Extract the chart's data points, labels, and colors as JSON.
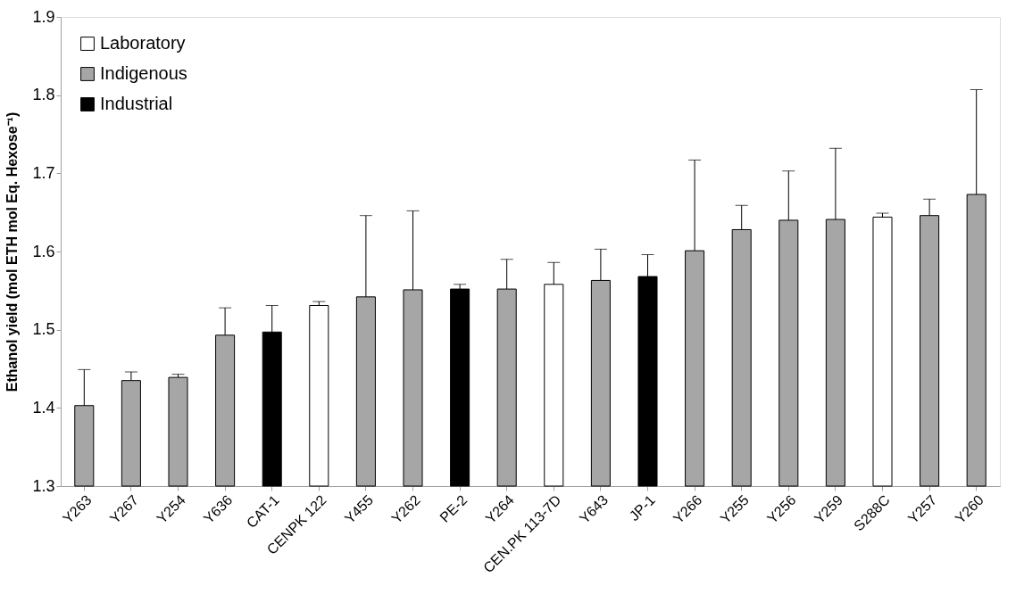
{
  "chart_data": {
    "type": "bar",
    "ylabel": "Ethanol yield (mol ETH mol Eq. Hexose⁻¹)",
    "categories": [
      "Y263",
      "Y267",
      "Y254",
      "Y636",
      "CAT-1",
      "CENPK 122",
      "Y455",
      "Y262",
      "PE-2",
      "Y264",
      "CEN.PK 113-7D",
      "Y643",
      "JP-1",
      "Y266",
      "Y255",
      "Y256",
      "Y259",
      "S288C",
      "Y257",
      "Y260"
    ],
    "stacked": true,
    "series": [
      {
        "name": "Laboratory",
        "color": "#ffffff",
        "values": [
          null,
          null,
          null,
          null,
          null,
          1.531,
          null,
          null,
          null,
          null,
          1.558,
          null,
          null,
          null,
          null,
          null,
          null,
          1.644,
          null,
          null
        ],
        "errors": [
          null,
          null,
          null,
          null,
          null,
          [
            1.531,
            1.536
          ],
          null,
          null,
          null,
          null,
          [
            1.558,
            1.586
          ],
          null,
          null,
          null,
          null,
          null,
          null,
          [
            1.644,
            1.649
          ],
          null,
          null
        ]
      },
      {
        "name": "Indigenous",
        "color": "#a6a6a6",
        "values": [
          1.403,
          1.435,
          1.439,
          1.493,
          null,
          null,
          1.542,
          1.551,
          null,
          1.552,
          null,
          1.563,
          null,
          1.601,
          1.628,
          1.64,
          1.641,
          null,
          1.646,
          1.673
        ],
        "errors": [
          [
            1.403,
            1.449
          ],
          [
            1.435,
            1.446
          ],
          [
            1.439,
            1.443
          ],
          [
            1.493,
            1.528
          ],
          null,
          null,
          [
            1.542,
            1.646
          ],
          [
            1.551,
            1.652
          ],
          null,
          [
            1.552,
            1.59
          ],
          null,
          [
            1.563,
            1.603
          ],
          null,
          [
            1.601,
            1.717
          ],
          [
            1.628,
            1.659
          ],
          [
            1.64,
            1.703
          ],
          [
            1.641,
            1.732
          ],
          null,
          [
            1.646,
            1.667
          ],
          [
            1.673,
            1.807
          ]
        ]
      },
      {
        "name": "Industrial",
        "color": "#000000",
        "values": [
          null,
          null,
          null,
          null,
          1.497,
          null,
          null,
          null,
          1.552,
          null,
          null,
          null,
          1.568,
          null,
          null,
          null,
          null,
          null,
          null,
          null
        ],
        "errors": [
          null,
          null,
          null,
          null,
          [
            1.497,
            1.531
          ],
          null,
          null,
          null,
          [
            1.552,
            1.558
          ],
          null,
          null,
          null,
          [
            1.568,
            1.596
          ],
          null,
          null,
          null,
          null,
          null,
          null,
          null
        ]
      }
    ],
    "ylim": [
      1.3,
      1.9
    ],
    "yticks": [
      1.3,
      1.4,
      1.5,
      1.6,
      1.7,
      1.8,
      1.9
    ],
    "grid": false,
    "legend": "top left"
  }
}
